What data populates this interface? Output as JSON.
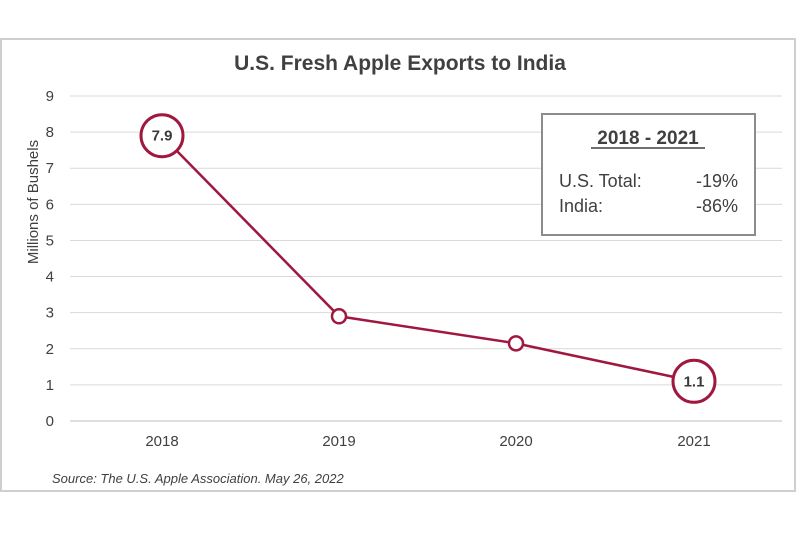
{
  "chart_data": {
    "type": "line",
    "title": "U.S. Fresh Apple Exports to India",
    "ylabel": "Millions of Bushels",
    "xlabel": "",
    "categories": [
      "2018",
      "2019",
      "2020",
      "2021"
    ],
    "series": [
      {
        "values": [
          7.9,
          2.9,
          2.15,
          1.1
        ]
      }
    ],
    "ylim": [
      0,
      9
    ],
    "yticks": [
      "0",
      "1",
      "2",
      "3",
      "4",
      "5",
      "6",
      "7",
      "8",
      "9"
    ],
    "grid": true,
    "data_labels": [
      {
        "index": 0,
        "text": "7.9"
      },
      {
        "index": 3,
        "text": "1.1"
      }
    ],
    "line_color": "#a0173f",
    "inset": {
      "title": "2018 - 2021",
      "rows": [
        {
          "label": "U.S. Total:",
          "value": "-19%"
        },
        {
          "label": "India:",
          "value": "-86%"
        }
      ]
    },
    "source": "Source: The U.S. Apple Association. May 26, 2022"
  }
}
